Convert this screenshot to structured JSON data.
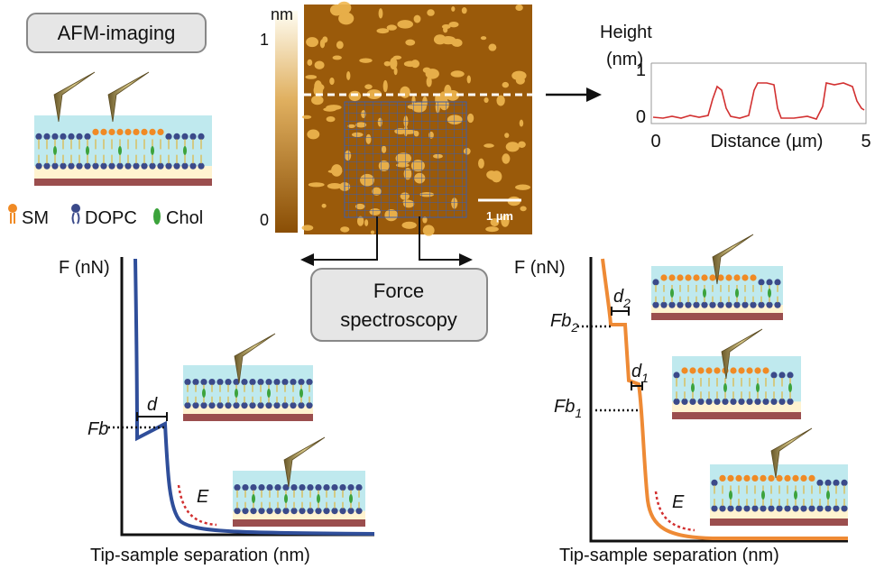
{
  "imaging_label": "AFM-imaging",
  "legend": [
    "SM",
    "DOPC",
    "Chol"
  ],
  "colorbar": {
    "unit": "nm",
    "max": "1",
    "min": "0"
  },
  "scale_bar": "1 µm",
  "height_profile": {
    "title_line1": "Height",
    "title_line2": "(nm)",
    "yticks": [
      "1",
      "0"
    ],
    "xticks": [
      "0",
      "5"
    ],
    "x_label": "Distance (µm)"
  },
  "force_box": [
    "Force",
    "spectroscopy"
  ],
  "left_plot": {
    "y_label": "F (nN)",
    "x_label": "Tip-sample separation (nm)",
    "fb": "Fb",
    "d": "d",
    "e": "E"
  },
  "right_plot": {
    "y_label": "F (nN)",
    "x_label": "Tip-sample separation (nm)",
    "fb2": {
      "main": "Fb",
      "sub": "2"
    },
    "fb1": {
      "main": "Fb",
      "sub": "1"
    },
    "d2": {
      "main": "d",
      "sub": "2"
    },
    "d1": {
      "main": "d",
      "sub": "1"
    },
    "e": "E"
  }
}
